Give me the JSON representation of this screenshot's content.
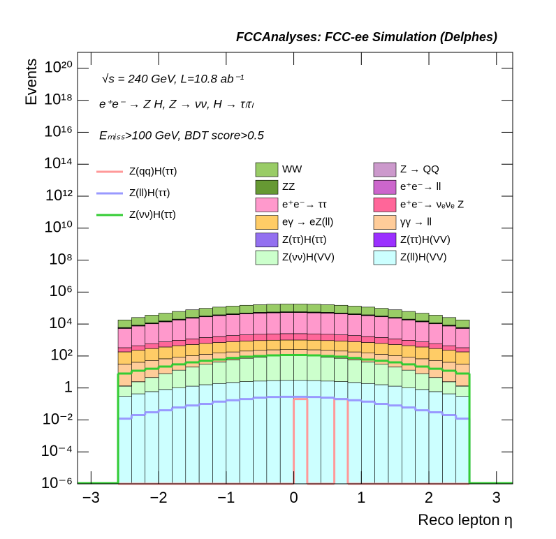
{
  "chart_data": {
    "type": "histogram",
    "title": "FCCAnalyses: FCC-ee Simulation (Delphes)",
    "annotations": [
      "√s = 240 GeV, L=10.8 ab⁻¹",
      "e⁺e⁻ → Z H, Z → νν, H → τₗτₗ",
      "Eₘᵢₛₛ>100 GeV, BDT score>0.5"
    ],
    "x_label": "Reco lepton η",
    "y_label": "Events",
    "log_y": true,
    "xlim": [
      -3.2,
      3.24
    ],
    "ylim": [
      1e-06,
      1e+21
    ],
    "xticks": [
      {
        "value": -3,
        "label": "−3"
      },
      {
        "value": -2,
        "label": "−2"
      },
      {
        "value": -1,
        "label": "−1"
      },
      0,
      1,
      2,
      3
    ],
    "yticks": [
      {
        "value": 1e-06,
        "label": "10⁻⁶"
      },
      {
        "value": 0.0001,
        "label": "10⁻⁴"
      },
      {
        "value": 0.01,
        "label": "10⁻²"
      },
      1,
      {
        "value": 100,
        "label": "10²"
      },
      {
        "value": 10000,
        "label": "10⁴"
      },
      {
        "value": 1000000.0,
        "label": "10⁶"
      },
      {
        "value": 100000000.0,
        "label": "10⁸"
      },
      {
        "value": 10000000000.0,
        "label": "10¹⁰"
      },
      {
        "value": 1000000000000.0,
        "label": "10¹²"
      },
      {
        "value": 100000000000000.0,
        "label": "10¹⁴"
      },
      {
        "value": 1e+16,
        "label": "10¹⁶"
      },
      {
        "value": 1e+18,
        "label": "10¹⁸"
      },
      {
        "value": 1e+20,
        "label": "10²⁰"
      }
    ],
    "bins": [
      -2.6,
      -2.4,
      -2.2,
      -2.0,
      -1.8,
      -1.6,
      -1.4,
      -1.2,
      -1.0,
      -0.8,
      -0.6,
      -0.4,
      -0.2,
      0,
      0.2,
      0.4,
      0.6,
      0.8,
      1.0,
      1.2,
      1.4,
      1.6,
      1.8,
      2.0,
      2.2,
      2.4,
      2.6
    ],
    "series": [
      {
        "name": "Z(qq)H(ττ)",
        "color": "#ff9999",
        "histtype": "step",
        "values": [
          0,
          0,
          0,
          0,
          0,
          0,
          0,
          0,
          0,
          0,
          0,
          0,
          0,
          0.2,
          0,
          0,
          0.2,
          0,
          0,
          0,
          0,
          0,
          0,
          0,
          0,
          0
        ]
      },
      {
        "name": "Z(ll)H(ττ)",
        "color": "#9999ff",
        "histtype": "step",
        "values": [
          0.012,
          0.02,
          0.03,
          0.04,
          0.06,
          0.08,
          0.1,
          0.14,
          0.17,
          0.2,
          0.25,
          0.27,
          0.28,
          0.28,
          0.27,
          0.25,
          0.2,
          0.17,
          0.14,
          0.1,
          0.08,
          0.06,
          0.04,
          0.03,
          0.02,
          0.012
        ]
      },
      {
        "name": "Z(νν)H(ττ)",
        "color": "#33cc33",
        "histtype": "step",
        "values": [
          8,
          12,
          16,
          22,
          30,
          40,
          50,
          60,
          75,
          90,
          100,
          110,
          115,
          115,
          110,
          100,
          90,
          75,
          60,
          50,
          40,
          30,
          22,
          16,
          12,
          8
        ]
      },
      {
        "name": "WW",
        "color": "#99cc66",
        "histtype": "stepfilled",
        "values": [
          12000,
          17000,
          24000,
          32000,
          41000,
          52000,
          64000,
          77000,
          89000,
          100000,
          109000,
          116000,
          120000,
          120000,
          116000,
          109000,
          100000,
          89000,
          77000,
          64000,
          52000,
          41000,
          32000,
          24000,
          17000,
          12000
        ]
      },
      {
        "name": "Z → QQ",
        "color": "#cc99cc",
        "histtype": "stepfilled",
        "values": [
          100,
          140,
          200,
          270,
          350,
          440,
          540,
          640,
          740,
          840,
          910,
          970,
          1000,
          1000,
          970,
          910,
          840,
          740,
          640,
          540,
          440,
          350,
          270,
          200,
          140,
          100
        ]
      },
      {
        "name": "ZZ",
        "color": "#669933",
        "histtype": "stepfilled",
        "values": [
          400,
          570,
          790,
          1100,
          1400,
          1700,
          2100,
          2600,
          3000,
          3300,
          3600,
          3900,
          4000,
          4000,
          3900,
          3600,
          3300,
          3000,
          2600,
          2100,
          1700,
          1400,
          1100,
          790,
          570,
          400
        ]
      },
      {
        "name": "e⁺e⁻→ ll",
        "color": "#cc66cc",
        "histtype": "stepfilled",
        "values": [
          200,
          260,
          320,
          390,
          480,
          560,
          650,
          730,
          810,
          880,
          940,
          980,
          1000,
          1000,
          980,
          940,
          880,
          810,
          730,
          650,
          560,
          480,
          390,
          320,
          260,
          200
        ]
      },
      {
        "name": "e⁺e⁻→ ττ",
        "color": "#ff99cc",
        "histtype": "stepfilled",
        "values": [
          5000,
          7100,
          9800,
          13000,
          17000,
          22000,
          27000,
          32000,
          37000,
          42000,
          46000,
          48000,
          50000,
          50000,
          48000,
          46000,
          42000,
          37000,
          32000,
          27000,
          22000,
          17000,
          13000,
          9800,
          7100,
          5000
        ]
      },
      {
        "name": "e⁺e⁻→ νₑνₑ Z",
        "color": "#ff6699",
        "histtype": "stepfilled",
        "values": [
          150,
          210,
          300,
          400,
          520,
          660,
          810,
          960,
          1110,
          1250,
          1370,
          1450,
          1500,
          1500,
          1450,
          1370,
          1250,
          1110,
          960,
          810,
          660,
          520,
          400,
          300,
          210,
          150
        ]
      },
      {
        "name": "eγ → eZ(ll)",
        "color": "#ffcc66",
        "histtype": "stepfilled",
        "values": [
          150,
          190,
          240,
          300,
          360,
          420,
          490,
          550,
          610,
          660,
          700,
          730,
          750,
          750,
          730,
          700,
          660,
          610,
          550,
          490,
          420,
          360,
          300,
          240,
          190,
          150
        ]
      },
      {
        "name": "γγ → ll",
        "color": "#ffcc99",
        "histtype": "stepfilled",
        "values": [
          30,
          38,
          48,
          59,
          71,
          84,
          97,
          110,
          122,
          132,
          141,
          147,
          150,
          150,
          147,
          141,
          132,
          122,
          110,
          97,
          84,
          71,
          59,
          48,
          38,
          30
        ]
      },
      {
        "name": "Z(ττ)H(ττ)",
        "color": "#9370f0",
        "histtype": "stepfilled",
        "values": [
          0.002,
          0.002,
          0.002,
          0.002,
          0.002,
          0.003,
          0.003,
          0.003,
          0.003,
          0.003,
          0.004,
          0.004,
          0.004,
          0.004,
          0.004,
          0.004,
          0.003,
          0.003,
          0.003,
          0.003,
          0.003,
          0.002,
          0.002,
          0.002,
          0.002,
          0.002
        ]
      },
      {
        "name": "Z(ττ)H(VV)",
        "color": "#9b30ff",
        "histtype": "stepfilled",
        "values": [
          0.04,
          0.03,
          0.01,
          0.04,
          0.01,
          0.03,
          0.04,
          0.03,
          0.05,
          0.04,
          0.03,
          0.05,
          0.04,
          0.03,
          0.05,
          0.04,
          0.03,
          0.02,
          0.04,
          0.03,
          0.05,
          0.03,
          0.04,
          0.01,
          0.03,
          0.04
        ]
      },
      {
        "name": "Z(νν)H(VV)",
        "color": "#ccffcc",
        "histtype": "stepfilled",
        "values": [
          1,
          2,
          3.9,
          7,
          12,
          19,
          29,
          41,
          55,
          70,
          83,
          94,
          99,
          99,
          94,
          83,
          70,
          55,
          41,
          29,
          19,
          12,
          7,
          3.9,
          2,
          1
        ]
      },
      {
        "name": "Z(ll)H(VV)",
        "color": "#ccffff",
        "histtype": "stepfilled",
        "values": [
          0.3,
          0.43,
          0.59,
          0.8,
          1,
          1.3,
          1.6,
          1.9,
          2.2,
          2.5,
          2.7,
          2.9,
          3,
          3,
          2.9,
          2.7,
          2.5,
          2.2,
          1.9,
          1.6,
          1.3,
          1,
          0.8,
          0.59,
          0.43,
          0.3
        ]
      }
    ]
  }
}
